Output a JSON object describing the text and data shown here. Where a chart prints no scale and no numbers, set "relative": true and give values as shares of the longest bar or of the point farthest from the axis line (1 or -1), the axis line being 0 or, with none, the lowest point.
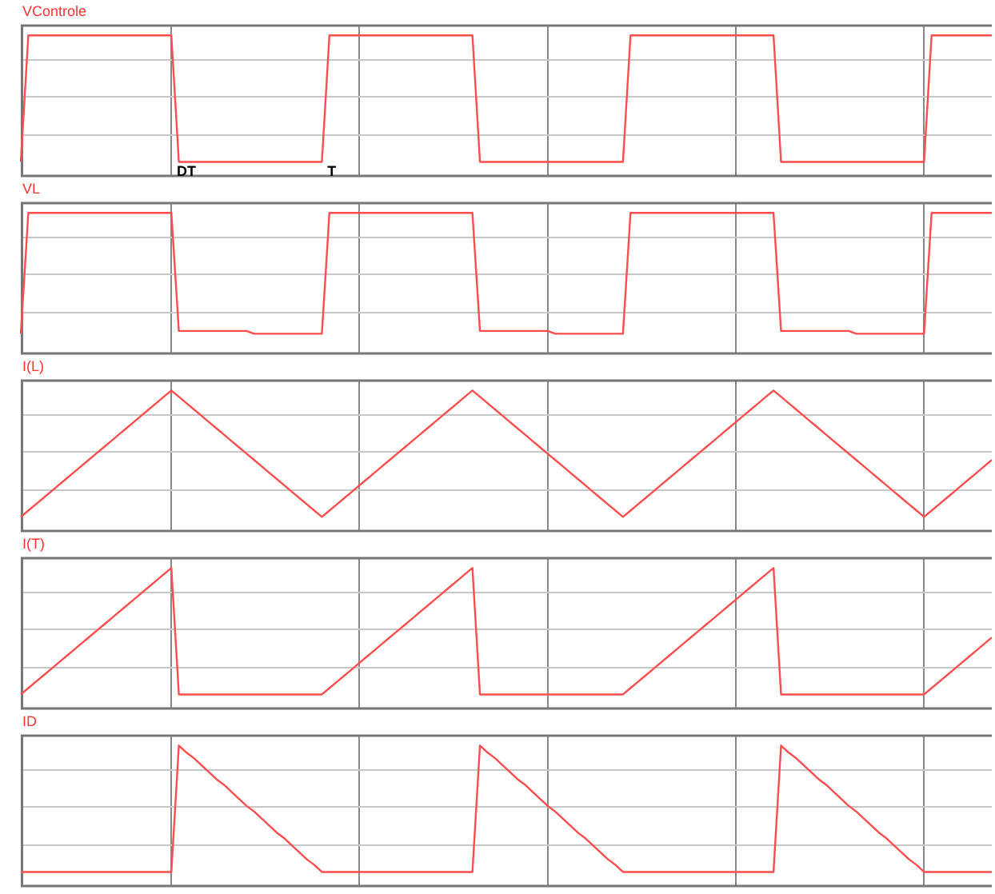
{
  "chart_data": [
    {
      "type": "line",
      "title": "VControle",
      "relative": true,
      "grid": true,
      "tick_labels": false,
      "categories": [
        null,
        null,
        null,
        null,
        null,
        null,
        null,
        null,
        null,
        null,
        null,
        null,
        null,
        null,
        null,
        null,
        null,
        null,
        null,
        null,
        null,
        null,
        null,
        null,
        null,
        null,
        null,
        null,
        null,
        null,
        null,
        null,
        null,
        null,
        null,
        null,
        null,
        null,
        null,
        null,
        null,
        null,
        null,
        null,
        null,
        null,
        null,
        null,
        null,
        null,
        null,
        null,
        null,
        null,
        null,
        null,
        null,
        null,
        null,
        null,
        null,
        null,
        null,
        null,
        null,
        null,
        null,
        null,
        null,
        null,
        null,
        null,
        null,
        null,
        null,
        null,
        null,
        null,
        null,
        null,
        null,
        null,
        null,
        null,
        null,
        null,
        null,
        null,
        null,
        null,
        null,
        null,
        null,
        null,
        null,
        null,
        null,
        null,
        null,
        null,
        null,
        null,
        null,
        null,
        null,
        null,
        null,
        null,
        null,
        null,
        null,
        null,
        null,
        null,
        null,
        null,
        null,
        null,
        null,
        null,
        null,
        null,
        null,
        null,
        null,
        null,
        null,
        null,
        null,
        null
      ],
      "series": [
        {
          "color": "#ff4d4d",
          "values": [
            0.1,
            1,
            1,
            1,
            1,
            1,
            1,
            1,
            1,
            1,
            1,
            1,
            1,
            1,
            1,
            1,
            1,
            1,
            1,
            1,
            1,
            0.1,
            0.1,
            0.1,
            0.1,
            0.1,
            0.1,
            0.1,
            0.1,
            0.1,
            0.1,
            0.1,
            0.1,
            0.1,
            0.1,
            0.1,
            0.1,
            0.1,
            0.1,
            0.1,
            0.1,
            1,
            1,
            1,
            1,
            1,
            1,
            1,
            1,
            1,
            1,
            1,
            1,
            1,
            1,
            1,
            1,
            1,
            1,
            1,
            1,
            0.1,
            0.1,
            0.1,
            0.1,
            0.1,
            0.1,
            0.1,
            0.1,
            0.1,
            0.1,
            0.1,
            0.1,
            0.1,
            0.1,
            0.1,
            0.1,
            0.1,
            0.1,
            0.1,
            0.1,
            1,
            1,
            1,
            1,
            1,
            1,
            1,
            1,
            1,
            1,
            1,
            1,
            1,
            1,
            1,
            1,
            1,
            1,
            1,
            1,
            0.1,
            0.1,
            0.1,
            0.1,
            0.1,
            0.1,
            0.1,
            0.1,
            0.1,
            0.1,
            0.1,
            0.1,
            0.1,
            0.1,
            0.1,
            0.1,
            0.1,
            0.1,
            0.1,
            0.1,
            1,
            1,
            1,
            1,
            1,
            1,
            1,
            1,
            1
          ]
        }
      ],
      "annotations": [
        "DT",
        "T"
      ]
    },
    {
      "type": "line",
      "title": "VL",
      "relative": true,
      "grid": true,
      "tick_labels": false,
      "categories": [
        null,
        null,
        null,
        null,
        null,
        null,
        null,
        null,
        null,
        null,
        null,
        null,
        null,
        null,
        null,
        null,
        null,
        null,
        null,
        null,
        null,
        null,
        null,
        null,
        null,
        null,
        null,
        null,
        null,
        null,
        null,
        null,
        null,
        null,
        null,
        null,
        null,
        null,
        null,
        null,
        null,
        null,
        null,
        null,
        null,
        null,
        null,
        null,
        null,
        null,
        null,
        null,
        null,
        null,
        null,
        null,
        null,
        null,
        null,
        null,
        null,
        null,
        null,
        null,
        null,
        null,
        null,
        null,
        null,
        null,
        null,
        null,
        null,
        null,
        null,
        null,
        null,
        null,
        null,
        null,
        null,
        null,
        null,
        null,
        null,
        null,
        null,
        null,
        null,
        null,
        null,
        null,
        null,
        null,
        null,
        null,
        null,
        null,
        null,
        null,
        null,
        null,
        null,
        null,
        null,
        null,
        null,
        null,
        null,
        null,
        null,
        null,
        null,
        null,
        null,
        null,
        null,
        null,
        null,
        null,
        null,
        null,
        null,
        null,
        null,
        null,
        null,
        null,
        null,
        null
      ],
      "series": [
        {
          "color": "#ff4d4d",
          "values": [
            0.14,
            1,
            1,
            1,
            1,
            1,
            1,
            1,
            1,
            1,
            1,
            1,
            1,
            1,
            1,
            1,
            1,
            1,
            1,
            1,
            1,
            0.16,
            0.16,
            0.16,
            0.16,
            0.16,
            0.16,
            0.16,
            0.16,
            0.16,
            0.16,
            0.14,
            0.14,
            0.14,
            0.14,
            0.14,
            0.14,
            0.14,
            0.14,
            0.14,
            0.14,
            1,
            1,
            1,
            1,
            1,
            1,
            1,
            1,
            1,
            1,
            1,
            1,
            1,
            1,
            1,
            1,
            1,
            1,
            1,
            1,
            0.16,
            0.16,
            0.16,
            0.16,
            0.16,
            0.16,
            0.16,
            0.16,
            0.16,
            0.16,
            0.14,
            0.14,
            0.14,
            0.14,
            0.14,
            0.14,
            0.14,
            0.14,
            0.14,
            0.14,
            1,
            1,
            1,
            1,
            1,
            1,
            1,
            1,
            1,
            1,
            1,
            1,
            1,
            1,
            1,
            1,
            1,
            1,
            1,
            1,
            0.16,
            0.16,
            0.16,
            0.16,
            0.16,
            0.16,
            0.16,
            0.16,
            0.16,
            0.16,
            0.14,
            0.14,
            0.14,
            0.14,
            0.14,
            0.14,
            0.14,
            0.14,
            0.14,
            0.14,
            1,
            1,
            1,
            1,
            1,
            1,
            1,
            1,
            1
          ]
        }
      ]
    },
    {
      "type": "line",
      "title": "I(L)",
      "relative": true,
      "grid": true,
      "tick_labels": false,
      "categories": [
        null,
        null,
        null,
        null,
        null,
        null,
        null,
        null,
        null,
        null,
        null,
        null,
        null,
        null,
        null,
        null,
        null,
        null,
        null,
        null,
        null,
        null,
        null,
        null,
        null,
        null,
        null,
        null,
        null,
        null,
        null,
        null,
        null,
        null,
        null,
        null,
        null,
        null,
        null,
        null,
        null,
        null,
        null,
        null,
        null,
        null,
        null,
        null,
        null,
        null,
        null,
        null,
        null,
        null,
        null,
        null,
        null,
        null,
        null,
        null,
        null,
        null,
        null,
        null,
        null,
        null,
        null,
        null,
        null,
        null,
        null,
        null,
        null,
        null,
        null,
        null,
        null,
        null,
        null,
        null,
        null,
        null,
        null,
        null,
        null,
        null,
        null,
        null,
        null,
        null,
        null,
        null,
        null,
        null,
        null,
        null,
        null,
        null,
        null,
        null,
        null,
        null,
        null,
        null,
        null,
        null,
        null,
        null,
        null,
        null,
        null,
        null,
        null,
        null,
        null,
        null,
        null,
        null,
        null,
        null,
        null,
        null,
        null,
        null,
        null,
        null,
        null,
        null,
        null,
        null
      ],
      "series": [
        {
          "color": "#ff4d4d",
          "values": [
            0.1,
            0.145,
            0.19,
            0.235,
            0.28,
            0.325,
            0.37,
            0.415,
            0.46,
            0.505,
            0.55,
            0.595,
            0.64,
            0.685,
            0.73,
            0.775,
            0.82,
            0.865,
            0.91,
            0.955,
            1,
            0.955,
            0.91,
            0.865,
            0.82,
            0.775,
            0.73,
            0.685,
            0.64,
            0.595,
            0.55,
            0.505,
            0.46,
            0.415,
            0.37,
            0.325,
            0.28,
            0.235,
            0.19,
            0.145,
            0.1,
            0.145,
            0.19,
            0.235,
            0.28,
            0.325,
            0.37,
            0.415,
            0.46,
            0.505,
            0.55,
            0.595,
            0.64,
            0.685,
            0.73,
            0.775,
            0.82,
            0.865,
            0.91,
            0.955,
            1,
            0.955,
            0.91,
            0.865,
            0.82,
            0.775,
            0.73,
            0.685,
            0.64,
            0.595,
            0.55,
            0.505,
            0.46,
            0.415,
            0.37,
            0.325,
            0.28,
            0.235,
            0.19,
            0.145,
            0.1,
            0.145,
            0.19,
            0.235,
            0.28,
            0.325,
            0.37,
            0.415,
            0.46,
            0.505,
            0.55,
            0.595,
            0.64,
            0.685,
            0.73,
            0.775,
            0.82,
            0.865,
            0.91,
            0.955,
            1,
            0.955,
            0.91,
            0.865,
            0.82,
            0.775,
            0.73,
            0.685,
            0.64,
            0.595,
            0.55,
            0.505,
            0.46,
            0.415,
            0.37,
            0.325,
            0.28,
            0.235,
            0.19,
            0.145,
            0.1,
            0.145,
            0.19,
            0.235,
            0.28,
            0.325,
            0.37,
            0.415,
            0.46,
            0.505
          ]
        }
      ]
    },
    {
      "type": "line",
      "title": "I(T)",
      "relative": true,
      "grid": true,
      "tick_labels": false,
      "categories": [
        null,
        null,
        null,
        null,
        null,
        null,
        null,
        null,
        null,
        null,
        null,
        null,
        null,
        null,
        null,
        null,
        null,
        null,
        null,
        null,
        null,
        null,
        null,
        null,
        null,
        null,
        null,
        null,
        null,
        null,
        null,
        null,
        null,
        null,
        null,
        null,
        null,
        null,
        null,
        null,
        null,
        null,
        null,
        null,
        null,
        null,
        null,
        null,
        null,
        null,
        null,
        null,
        null,
        null,
        null,
        null,
        null,
        null,
        null,
        null,
        null,
        null,
        null,
        null,
        null,
        null,
        null,
        null,
        null,
        null,
        null,
        null,
        null,
        null,
        null,
        null,
        null,
        null,
        null,
        null,
        null,
        null,
        null,
        null,
        null,
        null,
        null,
        null,
        null,
        null,
        null,
        null,
        null,
        null,
        null,
        null,
        null,
        null,
        null,
        null,
        null,
        null,
        null,
        null,
        null,
        null,
        null,
        null,
        null,
        null,
        null,
        null,
        null,
        null,
        null,
        null,
        null,
        null,
        null,
        null,
        null,
        null,
        null,
        null,
        null,
        null,
        null,
        null,
        null,
        null
      ],
      "series": [
        {
          "color": "#ff4d4d",
          "values": [
            0.1,
            0.145,
            0.19,
            0.235,
            0.28,
            0.325,
            0.37,
            0.415,
            0.46,
            0.505,
            0.55,
            0.595,
            0.64,
            0.685,
            0.73,
            0.775,
            0.82,
            0.865,
            0.91,
            0.955,
            1,
            0.1,
            0.1,
            0.1,
            0.1,
            0.1,
            0.1,
            0.1,
            0.1,
            0.1,
            0.1,
            0.1,
            0.1,
            0.1,
            0.1,
            0.1,
            0.1,
            0.1,
            0.1,
            0.1,
            0.1,
            0.145,
            0.19,
            0.235,
            0.28,
            0.325,
            0.37,
            0.415,
            0.46,
            0.505,
            0.55,
            0.595,
            0.64,
            0.685,
            0.73,
            0.775,
            0.82,
            0.865,
            0.91,
            0.955,
            1,
            0.1,
            0.1,
            0.1,
            0.1,
            0.1,
            0.1,
            0.1,
            0.1,
            0.1,
            0.1,
            0.1,
            0.1,
            0.1,
            0.1,
            0.1,
            0.1,
            0.1,
            0.1,
            0.1,
            0.1,
            0.145,
            0.19,
            0.235,
            0.28,
            0.325,
            0.37,
            0.415,
            0.46,
            0.505,
            0.55,
            0.595,
            0.64,
            0.685,
            0.73,
            0.775,
            0.82,
            0.865,
            0.91,
            0.955,
            1,
            0.1,
            0.1,
            0.1,
            0.1,
            0.1,
            0.1,
            0.1,
            0.1,
            0.1,
            0.1,
            0.1,
            0.1,
            0.1,
            0.1,
            0.1,
            0.1,
            0.1,
            0.1,
            0.1,
            0.1,
            0.145,
            0.19,
            0.235,
            0.28,
            0.325,
            0.37,
            0.415,
            0.46,
            0.505
          ]
        }
      ]
    },
    {
      "type": "line",
      "title": "ID",
      "relative": true,
      "grid": true,
      "tick_labels": false,
      "categories": [
        null,
        null,
        null,
        null,
        null,
        null,
        null,
        null,
        null,
        null,
        null,
        null,
        null,
        null,
        null,
        null,
        null,
        null,
        null,
        null,
        null,
        null,
        null,
        null,
        null,
        null,
        null,
        null,
        null,
        null,
        null,
        null,
        null,
        null,
        null,
        null,
        null,
        null,
        null,
        null,
        null,
        null,
        null,
        null,
        null,
        null,
        null,
        null,
        null,
        null,
        null,
        null,
        null,
        null,
        null,
        null,
        null,
        null,
        null,
        null,
        null,
        null,
        null,
        null,
        null,
        null,
        null,
        null,
        null,
        null,
        null,
        null,
        null,
        null,
        null,
        null,
        null,
        null,
        null,
        null,
        null,
        null,
        null,
        null,
        null,
        null,
        null,
        null,
        null,
        null,
        null,
        null,
        null,
        null,
        null,
        null,
        null,
        null,
        null,
        null,
        null,
        null,
        null,
        null,
        null,
        null,
        null,
        null,
        null,
        null,
        null,
        null,
        null,
        null,
        null,
        null,
        null,
        null,
        null,
        null,
        null,
        null,
        null,
        null,
        null,
        null,
        null,
        null,
        null,
        null
      ],
      "series": [
        {
          "color": "#ff4d4d",
          "values": [
            0.1,
            0.1,
            0.1,
            0.1,
            0.1,
            0.1,
            0.1,
            0.1,
            0.1,
            0.1,
            0.1,
            0.1,
            0.1,
            0.1,
            0.1,
            0.1,
            0.1,
            0.1,
            0.1,
            0.1,
            0.1,
            1,
            0.95,
            0.91,
            0.86,
            0.81,
            0.76,
            0.72,
            0.67,
            0.62,
            0.57,
            0.53,
            0.48,
            0.43,
            0.38,
            0.34,
            0.29,
            0.24,
            0.19,
            0.15,
            0.1,
            0.1,
            0.1,
            0.1,
            0.1,
            0.1,
            0.1,
            0.1,
            0.1,
            0.1,
            0.1,
            0.1,
            0.1,
            0.1,
            0.1,
            0.1,
            0.1,
            0.1,
            0.1,
            0.1,
            0.1,
            1,
            0.95,
            0.91,
            0.86,
            0.81,
            0.76,
            0.72,
            0.67,
            0.62,
            0.57,
            0.53,
            0.48,
            0.43,
            0.38,
            0.34,
            0.29,
            0.24,
            0.19,
            0.15,
            0.1,
            0.1,
            0.1,
            0.1,
            0.1,
            0.1,
            0.1,
            0.1,
            0.1,
            0.1,
            0.1,
            0.1,
            0.1,
            0.1,
            0.1,
            0.1,
            0.1,
            0.1,
            0.1,
            0.1,
            0.1,
            1,
            0.95,
            0.91,
            0.86,
            0.81,
            0.76,
            0.72,
            0.67,
            0.62,
            0.57,
            0.53,
            0.48,
            0.43,
            0.38,
            0.34,
            0.29,
            0.24,
            0.19,
            0.15,
            0.1,
            0.1,
            0.1,
            0.1,
            0.1,
            0.1,
            0.1,
            0.1,
            0.1,
            0.1
          ]
        }
      ]
    }
  ]
}
